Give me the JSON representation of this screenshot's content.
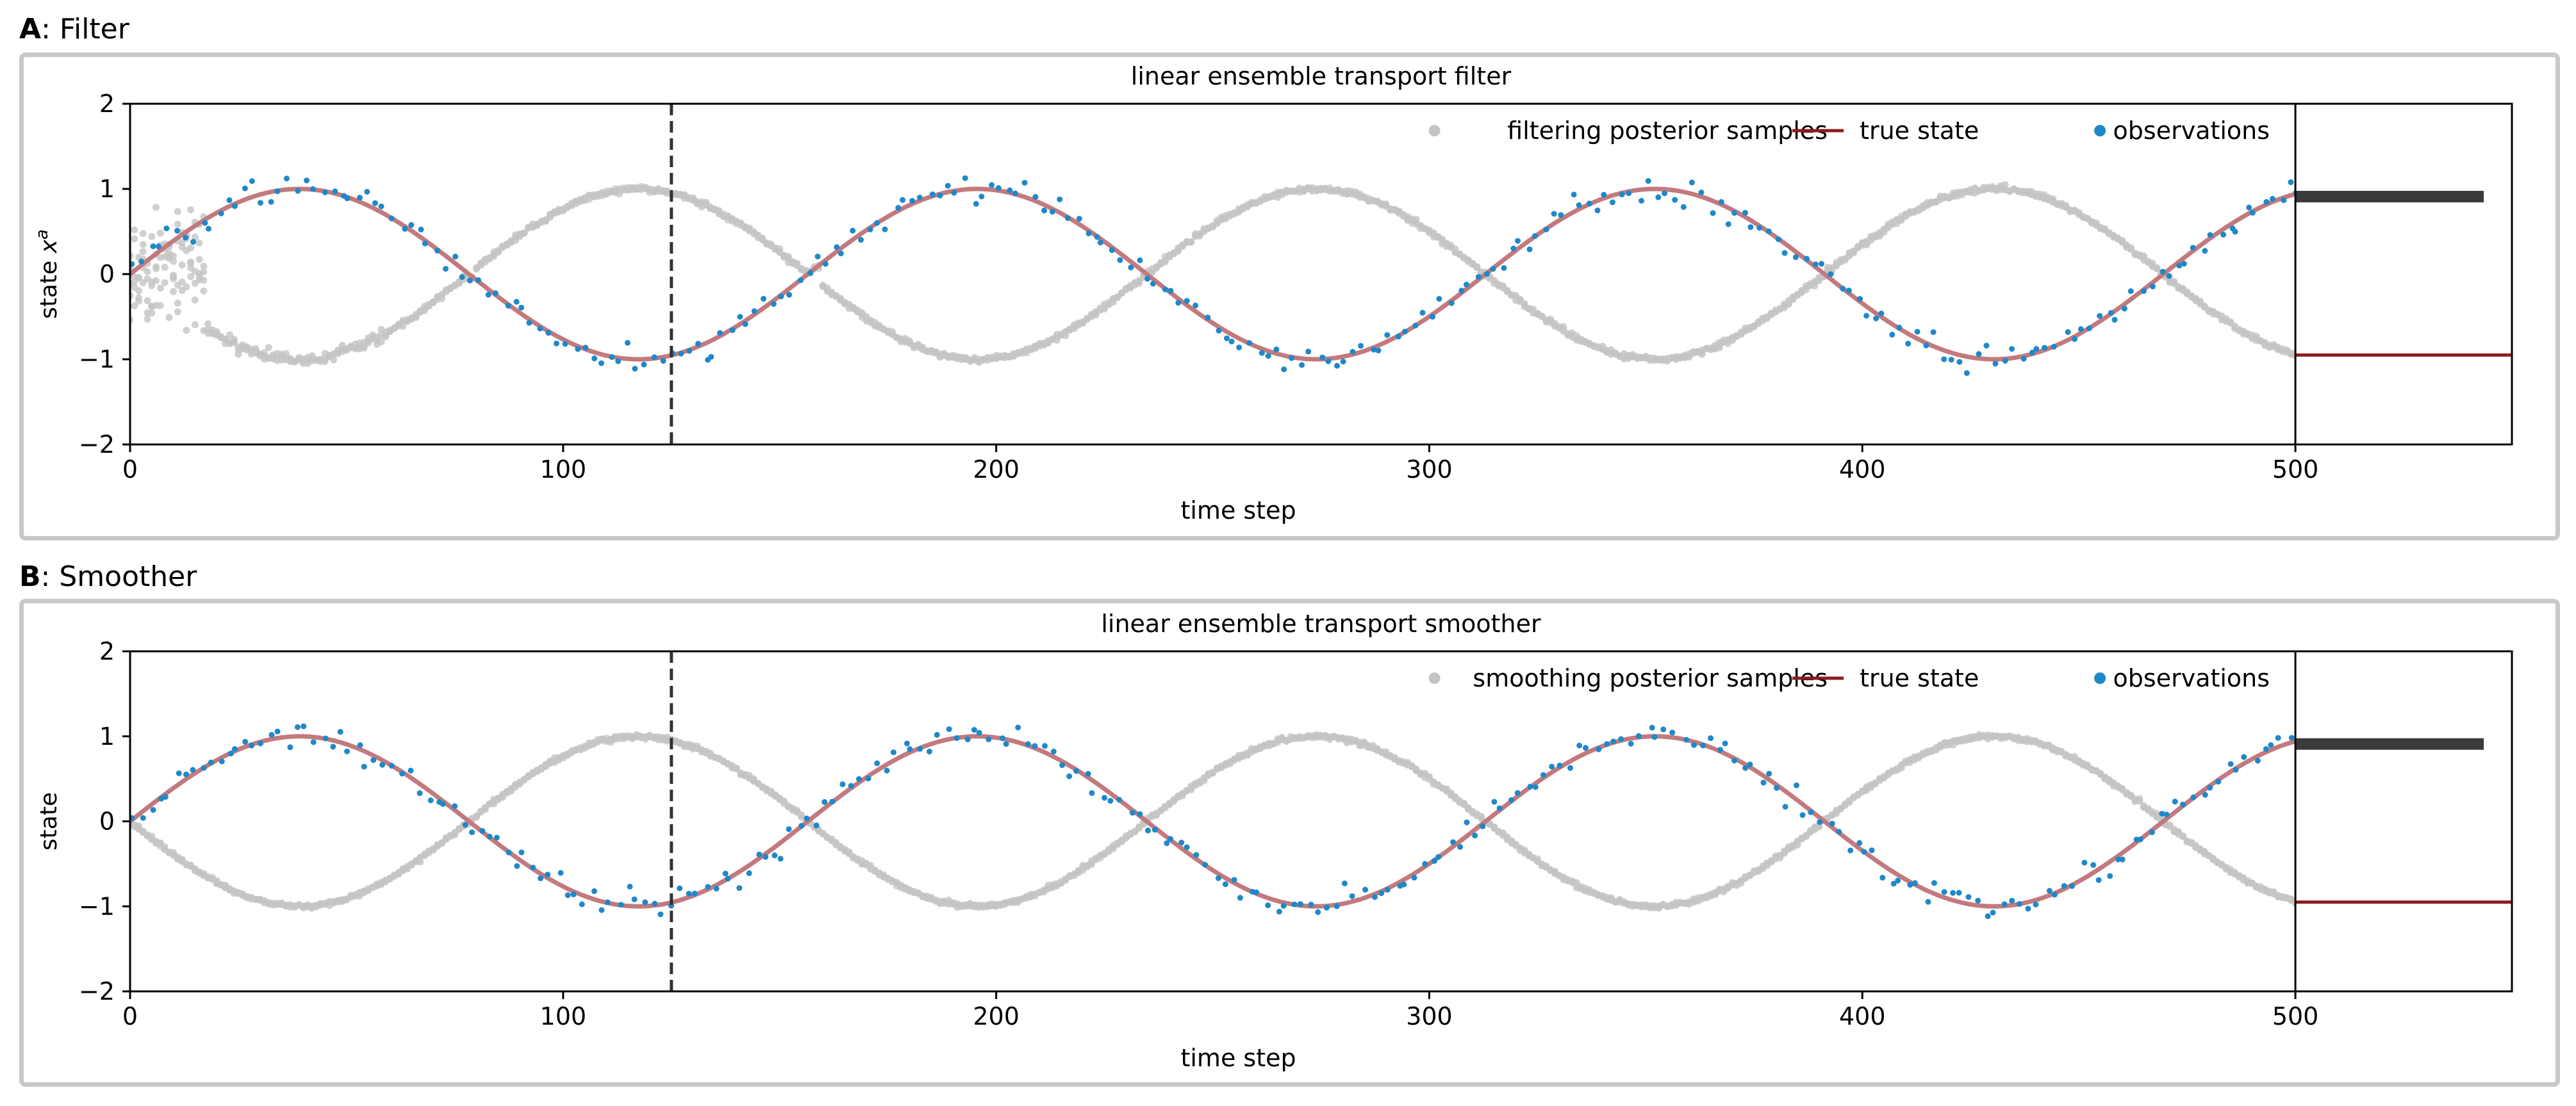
{
  "panels": [
    {
      "letter": "A",
      "suffix": ": Filter"
    },
    {
      "letter": "B",
      "suffix": ": Smoother"
    }
  ],
  "colors": {
    "samples": "#c4c4c4",
    "true_state": "#8c1c1c",
    "true_state_faded": "#c27a7e",
    "observations": "#1f88c8",
    "dashed": "#333333",
    "frame": "#000000",
    "hist_bar": "#3a3a3a",
    "panel_border": "#c8c8c8"
  },
  "chart_data": [
    {
      "type": "line",
      "title": "linear ensemble transport filter",
      "xlabel": "time step",
      "ylabel_main": "state ",
      "ylabel_math": "x",
      "ylabel_sup": "a",
      "xlim": [
        0,
        550
      ],
      "ylim": [
        -2,
        2
      ],
      "xticks": [
        0,
        100,
        200,
        300,
        400,
        500
      ],
      "yticks": [
        -2,
        -1,
        0,
        1,
        2
      ],
      "vline_x": 125,
      "time_end": 500,
      "true_state": {
        "amplitude": 1.0,
        "period": 156.5,
        "phase": 0
      },
      "posterior_samples": {
        "mode": "filter",
        "transient_until": 18,
        "initial_spread": 0.3
      },
      "observations": {
        "amplitude": 1.0,
        "period": 156.5,
        "noise": 0.08,
        "spacing": 2
      },
      "terminal_bars": [
        {
          "y": 0.91,
          "kind": "samples"
        },
        {
          "y": -0.95,
          "kind": "true_state"
        }
      ],
      "legend": [
        {
          "label": "filtering posterior samples",
          "kind": "samples"
        },
        {
          "label": "true state",
          "kind": "true_state"
        },
        {
          "label": "observations",
          "kind": "observations"
        }
      ],
      "legend_position": "top-right"
    },
    {
      "type": "line",
      "title": "linear ensemble transport smoother",
      "xlabel": "time step",
      "ylabel_main": "state",
      "ylabel_math": "",
      "ylabel_sup": "",
      "xlim": [
        0,
        550
      ],
      "ylim": [
        -2,
        2
      ],
      "xticks": [
        0,
        100,
        200,
        300,
        400,
        500
      ],
      "yticks": [
        -2,
        -1,
        0,
        1,
        2
      ],
      "vline_x": 125,
      "time_end": 500,
      "true_state": {
        "amplitude": 1.0,
        "period": 156.5,
        "phase": 0
      },
      "posterior_samples": {
        "mode": "smoother",
        "transient_until": 0,
        "initial_spread": 0.0
      },
      "observations": {
        "amplitude": 1.0,
        "period": 156.5,
        "noise": 0.08,
        "spacing": 2
      },
      "terminal_bars": [
        {
          "y": 0.91,
          "kind": "samples"
        },
        {
          "y": -0.95,
          "kind": "true_state"
        }
      ],
      "legend": [
        {
          "label": "smoothing posterior samples",
          "kind": "samples"
        },
        {
          "label": "true state",
          "kind": "true_state"
        },
        {
          "label": "observations",
          "kind": "observations"
        }
      ],
      "legend_position": "top-right"
    }
  ]
}
